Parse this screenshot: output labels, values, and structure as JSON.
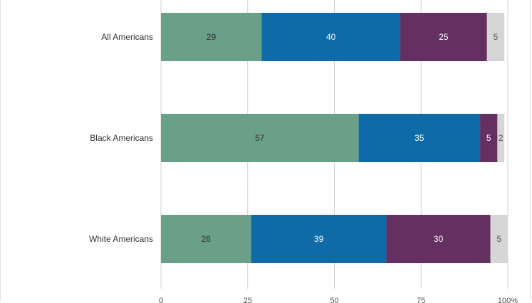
{
  "chart_data": {
    "type": "bar",
    "orientation": "horizontal",
    "stacked": true,
    "categories": [
      "All Americans",
      "Black Americans",
      "White Americans"
    ],
    "series": [
      {
        "color": "#6aa088",
        "label_color": "#333333",
        "values": [
          29,
          57,
          26
        ]
      },
      {
        "color": "#0f6aa8",
        "label_color": "#ffffff",
        "values": [
          40,
          35,
          39
        ]
      },
      {
        "color": "#643062",
        "label_color": "#ffffff",
        "values": [
          25,
          5,
          30
        ]
      },
      {
        "color": "#d6d6d6",
        "label_color": "#555555",
        "values": [
          5,
          2,
          5
        ]
      }
    ],
    "x_ticks": [
      "0",
      "25",
      "50",
      "75",
      "100%"
    ],
    "xlim": [
      0,
      100
    ],
    "grid": true,
    "legend": "none"
  }
}
